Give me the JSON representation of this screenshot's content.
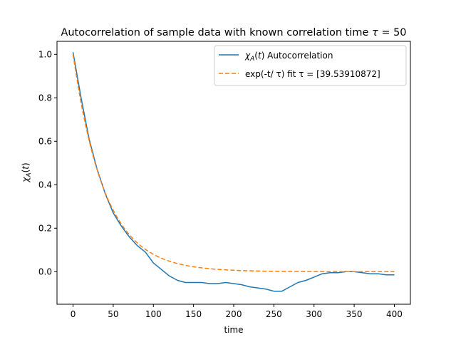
{
  "chart_data": {
    "type": "line",
    "title": "Autocorrelation of sample data with known correlation time τ = 50",
    "xlabel": "time",
    "ylabel": "χA(t)",
    "xlim": [
      -20,
      420
    ],
    "ylim": [
      -0.15,
      1.06
    ],
    "xticks": [
      0,
      50,
      100,
      150,
      200,
      250,
      300,
      350,
      400
    ],
    "yticks": [
      0.0,
      0.2,
      0.4,
      0.6,
      0.8,
      1.0
    ],
    "xtick_labels": [
      "0",
      "50",
      "100",
      "150",
      "200",
      "250",
      "300",
      "350",
      "400"
    ],
    "ytick_labels": [
      "0.0",
      "0.2",
      "0.4",
      "0.6",
      "0.8",
      "1.0"
    ],
    "grid": false,
    "legend_position": "top-right",
    "series": [
      {
        "name": "χA(t) Autocorrelation",
        "color": "#1f77b4",
        "style": "solid",
        "x": [
          0,
          10,
          20,
          30,
          40,
          50,
          60,
          70,
          80,
          90,
          100,
          110,
          120,
          130,
          140,
          150,
          160,
          170,
          180,
          190,
          200,
          210,
          220,
          230,
          240,
          250,
          260,
          270,
          280,
          290,
          300,
          310,
          320,
          330,
          340,
          350,
          360,
          370,
          380,
          390,
          400
        ],
        "y": [
          1.01,
          0.8,
          0.61,
          0.47,
          0.36,
          0.27,
          0.21,
          0.16,
          0.12,
          0.09,
          0.04,
          0.01,
          -0.02,
          -0.04,
          -0.05,
          -0.05,
          -0.05,
          -0.055,
          -0.055,
          -0.05,
          -0.055,
          -0.06,
          -0.07,
          -0.075,
          -0.08,
          -0.09,
          -0.09,
          -0.07,
          -0.05,
          -0.04,
          -0.025,
          -0.01,
          -0.005,
          -0.005,
          0.0,
          0.0,
          -0.005,
          -0.01,
          -0.01,
          -0.015,
          -0.015
        ]
      },
      {
        "name": "exp(-t/ τ) fit τ = [39.53910872]",
        "color": "#ff7f0e",
        "style": "dashed",
        "tau": 39.53910872
      }
    ]
  }
}
